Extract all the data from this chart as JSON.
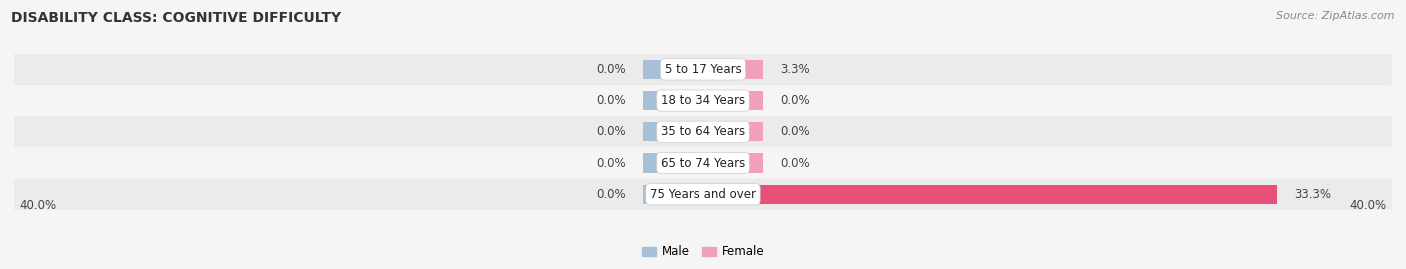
{
  "title": "DISABILITY CLASS: COGNITIVE DIFFICULTY",
  "source": "Source: ZipAtlas.com",
  "categories": [
    "5 to 17 Years",
    "18 to 34 Years",
    "35 to 64 Years",
    "65 to 74 Years",
    "75 Years and over"
  ],
  "male_values": [
    0.0,
    0.0,
    0.0,
    0.0,
    0.0
  ],
  "female_values": [
    3.3,
    0.0,
    0.0,
    0.0,
    33.3
  ],
  "male_color": "#a8bfd8",
  "female_color_small": "#f0a0b8",
  "female_color_large": "#e8507a",
  "row_color_odd": "#ebebeb",
  "row_color_even": "#f5f5f5",
  "bg_color": "#f5f5f5",
  "axis_limit": 40.0,
  "stub_size": 3.5,
  "bar_height": 0.62,
  "label_fontsize": 8.5,
  "cat_fontsize": 8.5,
  "title_fontsize": 10,
  "source_fontsize": 8
}
